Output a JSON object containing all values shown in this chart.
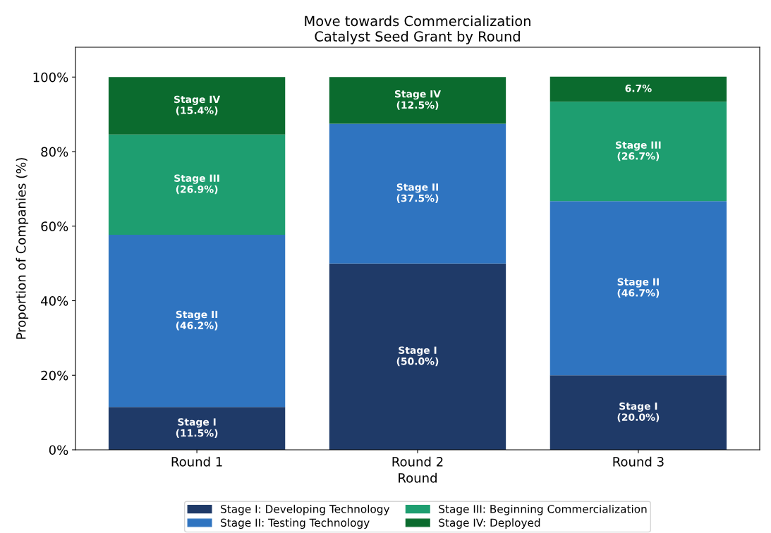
{
  "chart_data": {
    "type": "bar",
    "title": "Move towards Commercialization\nCatalyst Seed Grant by Round",
    "xlabel": "Round",
    "ylabel": "Proportion of Companies (%)",
    "categories": [
      "Round 1",
      "Round 2",
      "Round 3"
    ],
    "stacked": true,
    "ylim": [
      0,
      108
    ],
    "yticks": [
      {
        "value": 0,
        "label": "0%"
      },
      {
        "value": 20,
        "label": "20%"
      },
      {
        "value": 40,
        "label": "40%"
      },
      {
        "value": 60,
        "label": "60%"
      },
      {
        "value": 80,
        "label": "80%"
      },
      {
        "value": 100,
        "label": "100%"
      }
    ],
    "series": [
      {
        "name": "Stage I: Developing Technology",
        "color": "#1f3a68",
        "values": [
          11.5,
          50.0,
          20.0
        ],
        "value_labels": [
          "Stage I\n(11.5%)",
          "Stage I\n(50.0%)",
          "Stage I\n(20.0%)"
        ]
      },
      {
        "name": "Stage II: Testing Technology",
        "color": "#2f74c0",
        "values": [
          46.2,
          37.5,
          46.7
        ],
        "value_labels": [
          "Stage II\n(46.2%)",
          "Stage II\n(37.5%)",
          "Stage II\n(46.7%)"
        ]
      },
      {
        "name": "Stage III: Beginning Commercialization",
        "color": "#1e9e70",
        "values": [
          26.9,
          0,
          26.7
        ],
        "value_labels": [
          "Stage III\n(26.9%)",
          null,
          "Stage III\n(26.7%)"
        ]
      },
      {
        "name": "Stage IV: Deployed",
        "color": "#0b6b2e",
        "values": [
          15.4,
          12.5,
          6.7
        ],
        "value_labels": [
          "Stage IV\n(15.4%)",
          "Stage IV\n(12.5%)",
          "6.7%"
        ]
      }
    ],
    "grid": false,
    "legend": "bottom"
  }
}
